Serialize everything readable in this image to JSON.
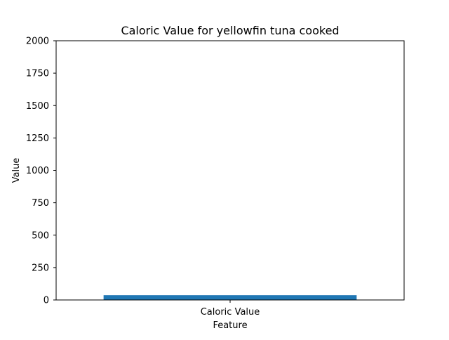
{
  "chart_data": {
    "type": "bar",
    "title": "Caloric Value for yellowfin tuna cooked",
    "xlabel": "Feature",
    "ylabel": "Value",
    "categories": [
      "Caloric Value"
    ],
    "values": [
      37
    ],
    "ylim": [
      0,
      2000
    ],
    "yticks": [
      0,
      250,
      500,
      750,
      1000,
      1250,
      1500,
      1750,
      2000
    ],
    "grid": false,
    "bar_color": "#1f77b4"
  }
}
